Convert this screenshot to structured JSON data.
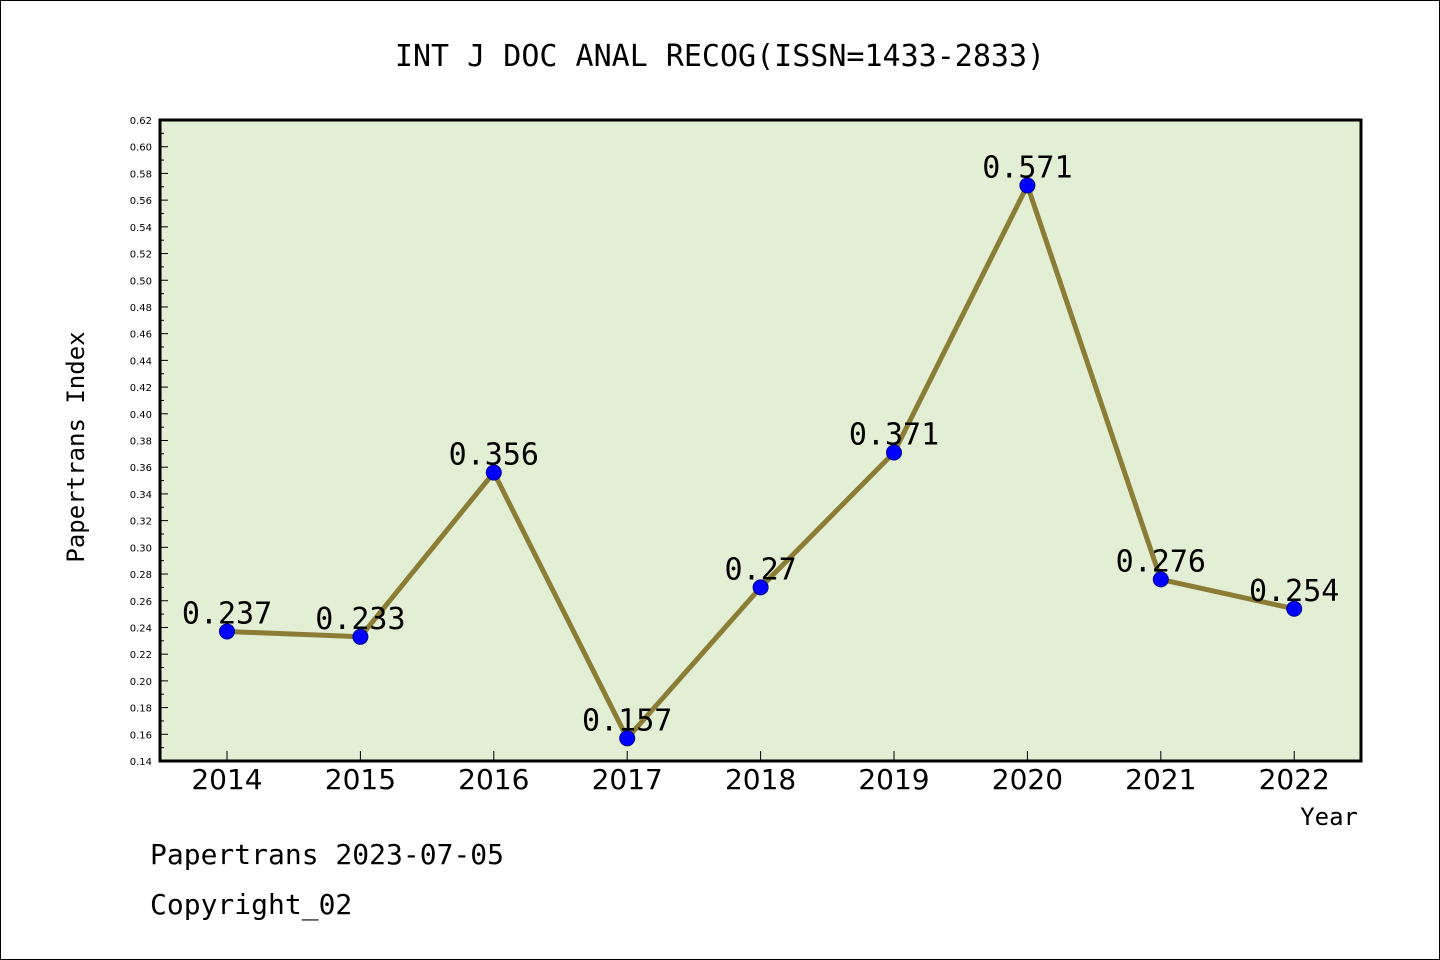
{
  "chart_data": {
    "type": "line",
    "title": "INT J DOC ANAL RECOG(ISSN=1433-2833)",
    "xlabel": "Year",
    "ylabel": "Papertrans Index",
    "categories": [
      "2014",
      "2015",
      "2016",
      "2017",
      "2018",
      "2019",
      "2020",
      "2021",
      "2022"
    ],
    "values": [
      0.237,
      0.233,
      0.356,
      0.157,
      0.27,
      0.371,
      0.571,
      0.276,
      0.254
    ],
    "data_labels": [
      "0.237",
      "0.233",
      "0.356",
      "0.157",
      "0.27",
      "0.371",
      "0.571",
      "0.276",
      "0.254"
    ],
    "ylim": [
      0.14,
      0.62
    ],
    "yticks": [
      "0.14",
      "0.16",
      "0.18",
      "0.20",
      "0.22",
      "0.24",
      "0.26",
      "0.28",
      "0.30",
      "0.32",
      "0.34",
      "0.36",
      "0.38",
      "0.40",
      "0.42",
      "0.44",
      "0.46",
      "0.48",
      "0.50",
      "0.52",
      "0.54",
      "0.56",
      "0.58",
      "0.60",
      "0.62"
    ],
    "grid": false,
    "plot_background": "#e2efd5",
    "line_color": "#8b7d35",
    "marker_color": "#0000ff"
  },
  "footer": {
    "line1": "Papertrans 2023-07-05",
    "line2": "Copyright_02"
  }
}
